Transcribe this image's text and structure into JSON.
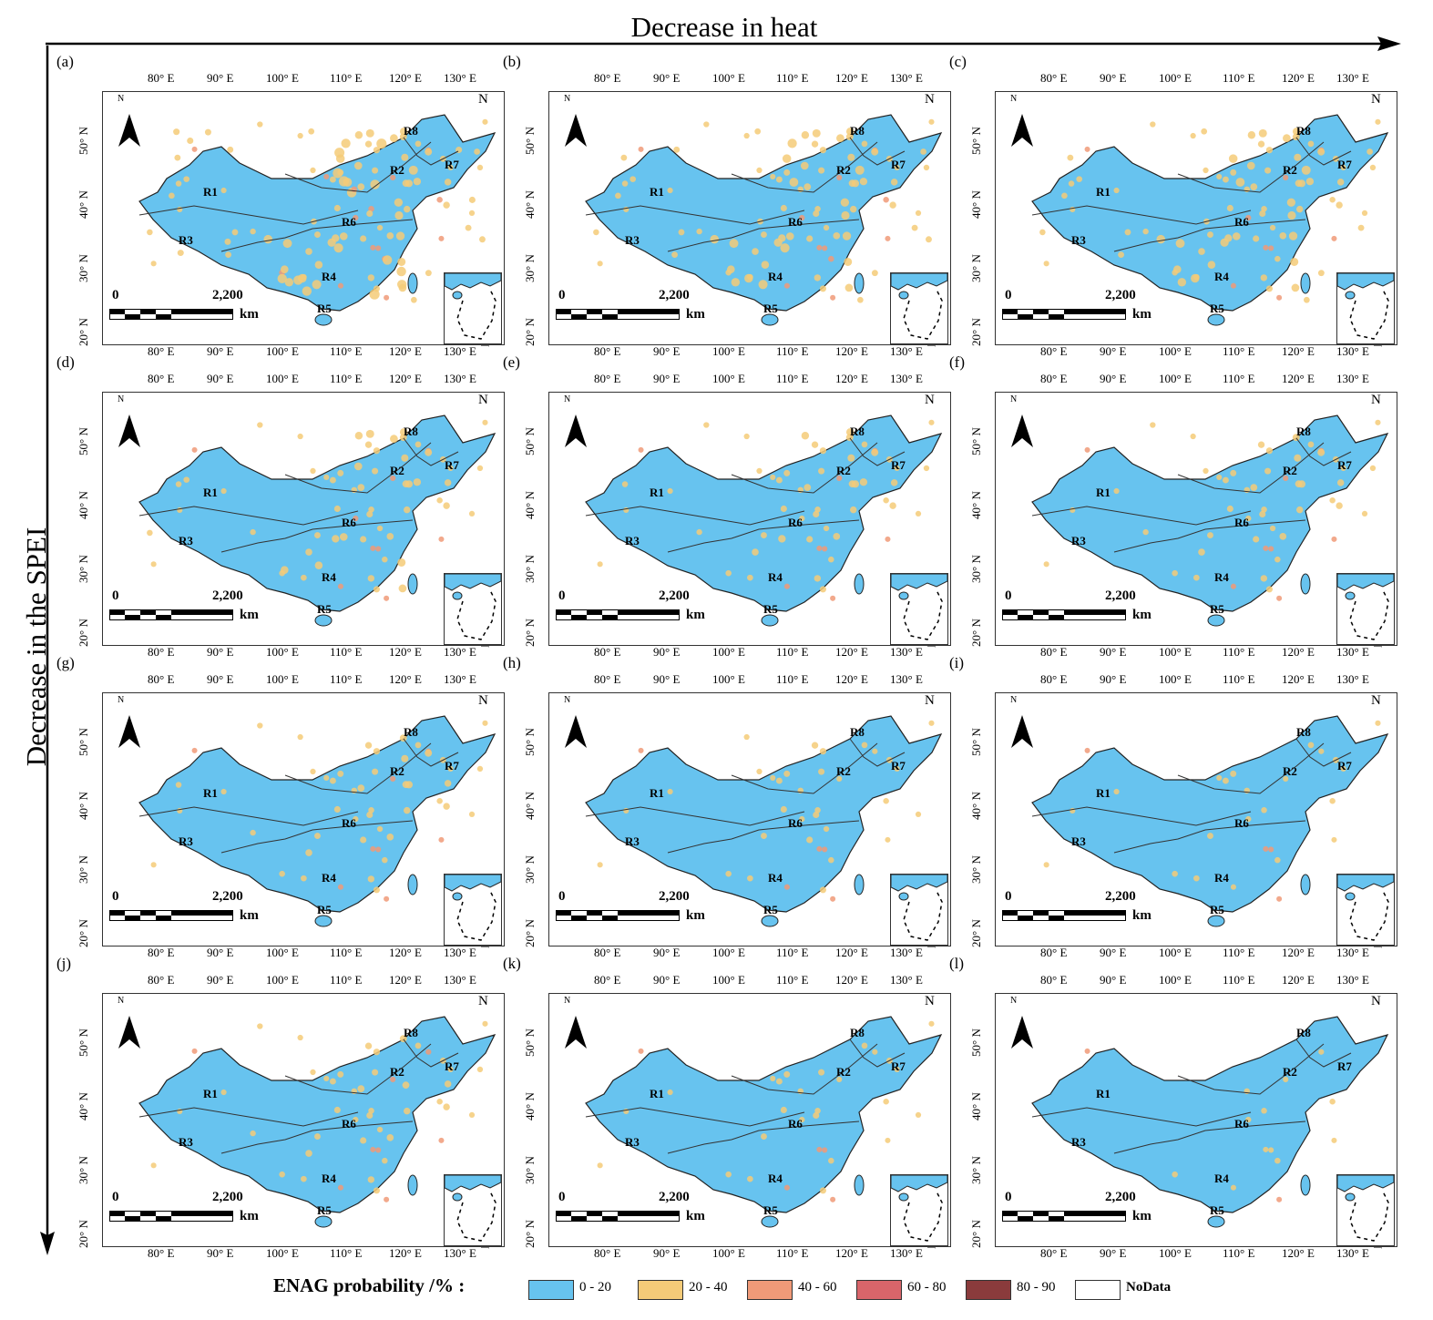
{
  "titles": {
    "top": "Decrease in heat",
    "left": "Decrease in the SPEI"
  },
  "axes": {
    "lon_top": [
      "80° E",
      "90° E",
      "100° E",
      "110° E",
      "120° E",
      "130° E"
    ],
    "lon_bottom": [
      "80° E",
      "90° E",
      "100° E",
      "110° E",
      "120° E",
      "130° E"
    ],
    "lat": [
      "50° N",
      "40° N",
      "30° N",
      "20° N"
    ],
    "north": "N"
  },
  "regions": [
    "R1",
    "R2",
    "R3",
    "R4",
    "R5",
    "R6",
    "R7",
    "R8"
  ],
  "scale": {
    "zero": "0",
    "distance": "2,200",
    "unit": "km"
  },
  "panels": [
    {
      "label": "(a)",
      "hot": 0.55
    },
    {
      "label": "(b)",
      "hot": 0.45
    },
    {
      "label": "(c)",
      "hot": 0.42
    },
    {
      "label": "(d)",
      "hot": 0.32
    },
    {
      "label": "(e)",
      "hot": 0.26
    },
    {
      "label": "(f)",
      "hot": 0.22
    },
    {
      "label": "(g)",
      "hot": 0.24
    },
    {
      "label": "(h)",
      "hot": 0.14
    },
    {
      "label": "(i)",
      "hot": 0.1
    },
    {
      "label": "(j)",
      "hot": 0.2
    },
    {
      "label": "(k)",
      "hot": 0.12
    },
    {
      "label": "(l)",
      "hot": 0.06
    }
  ],
  "legend": {
    "title": "ENAG probability /%",
    "separator": ":",
    "items": [
      {
        "label": "0 - 20",
        "color": "#67c3ef"
      },
      {
        "label": "20 - 40",
        "color": "#f5cb78"
      },
      {
        "label": "40 - 60",
        "color": "#f09a78"
      },
      {
        "label": "60 - 80",
        "color": "#d8656a"
      },
      {
        "label": "80 - 90",
        "color": "#8a3b3c"
      },
      {
        "label": "NoData",
        "color": "#ffffff"
      }
    ]
  }
}
